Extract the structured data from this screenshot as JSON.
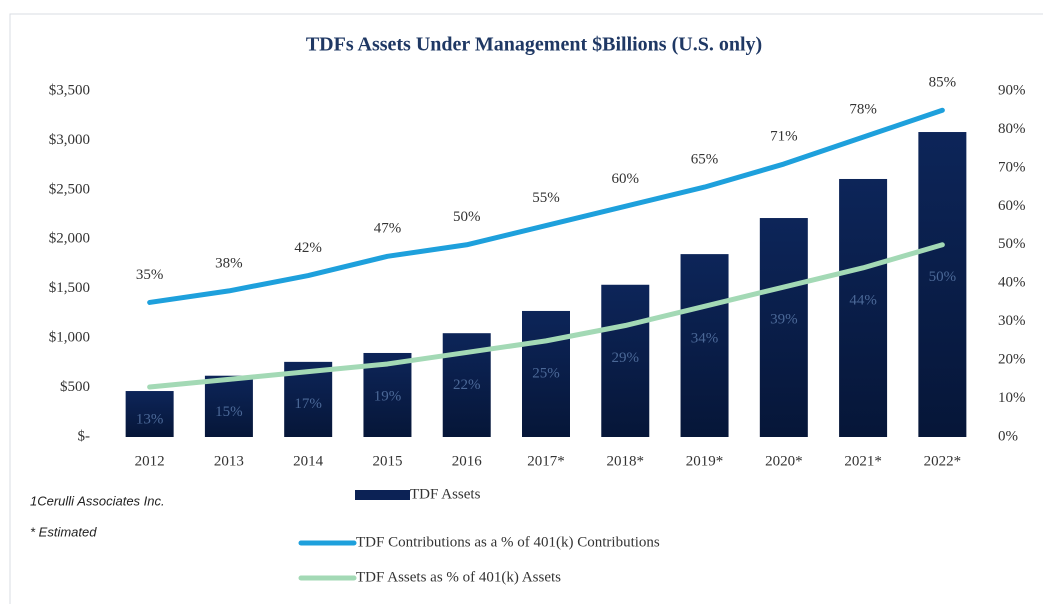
{
  "chart_data": {
    "type": "bar",
    "title": "TDFs Assets Under Management $Billions (U.S. only)",
    "annotations": [
      "1Cerulli Associates Inc.",
      "* Estimated"
    ],
    "categories": [
      "2012",
      "2013",
      "2014",
      "2015",
      "2016",
      "2017*",
      "2018*",
      "2019*",
      "2020*",
      "2021*",
      "2022*"
    ],
    "series": [
      {
        "name": "TDF Assets",
        "type": "bar",
        "color": "#0c2255",
        "values": [
          465,
          620,
          760,
          850,
          1050,
          1275,
          1540,
          1850,
          2215,
          2610,
          3085
        ]
      },
      {
        "name": "TDF Contributions as a % of 401(k) Contributions",
        "type": "line",
        "axis": "y2",
        "color": "#1ea0dc",
        "values": [
          35,
          38,
          42,
          47,
          50,
          55,
          60,
          65,
          71,
          78,
          85
        ],
        "value_labels": [
          "35%",
          "38%",
          "42%",
          "47%",
          "50%",
          "55%",
          "60%",
          "65%",
          "71%",
          "78%",
          "85%"
        ]
      },
      {
        "name": "TDF Assets as % of 401(k) Assets",
        "type": "line",
        "axis": "y2",
        "color": "#a3d9b5",
        "values": [
          13,
          15,
          17,
          19,
          22,
          25,
          29,
          34,
          39,
          44,
          50
        ],
        "value_labels": [
          "13%",
          "15%",
          "17%",
          "19%",
          "22%",
          "25%",
          "29%",
          "34%",
          "39%",
          "44%",
          "50%"
        ]
      }
    ],
    "ylim": [
      0,
      3500
    ],
    "yticks": [
      {
        "value": 0,
        "label": "$-"
      },
      {
        "value": 500,
        "label": "$500"
      },
      {
        "value": 1000,
        "label": "$1,000"
      },
      {
        "value": 1500,
        "label": "$1,500"
      },
      {
        "value": 2000,
        "label": "$2,000"
      },
      {
        "value": 2500,
        "label": "$2,500"
      },
      {
        "value": 3000,
        "label": "$3,000"
      },
      {
        "value": 3500,
        "label": "$3,500"
      }
    ],
    "y2lim": [
      0,
      90
    ],
    "y2ticks": [
      {
        "value": 0,
        "label": "0%"
      },
      {
        "value": 10,
        "label": "10%"
      },
      {
        "value": 20,
        "label": "20%"
      },
      {
        "value": 30,
        "label": "30%"
      },
      {
        "value": 40,
        "label": "40%"
      },
      {
        "value": 50,
        "label": "50%"
      },
      {
        "value": 60,
        "label": "60%"
      },
      {
        "value": 70,
        "label": "70%"
      },
      {
        "value": 80,
        "label": "80%"
      },
      {
        "value": 90,
        "label": "90%"
      }
    ],
    "legend": "bottom"
  }
}
